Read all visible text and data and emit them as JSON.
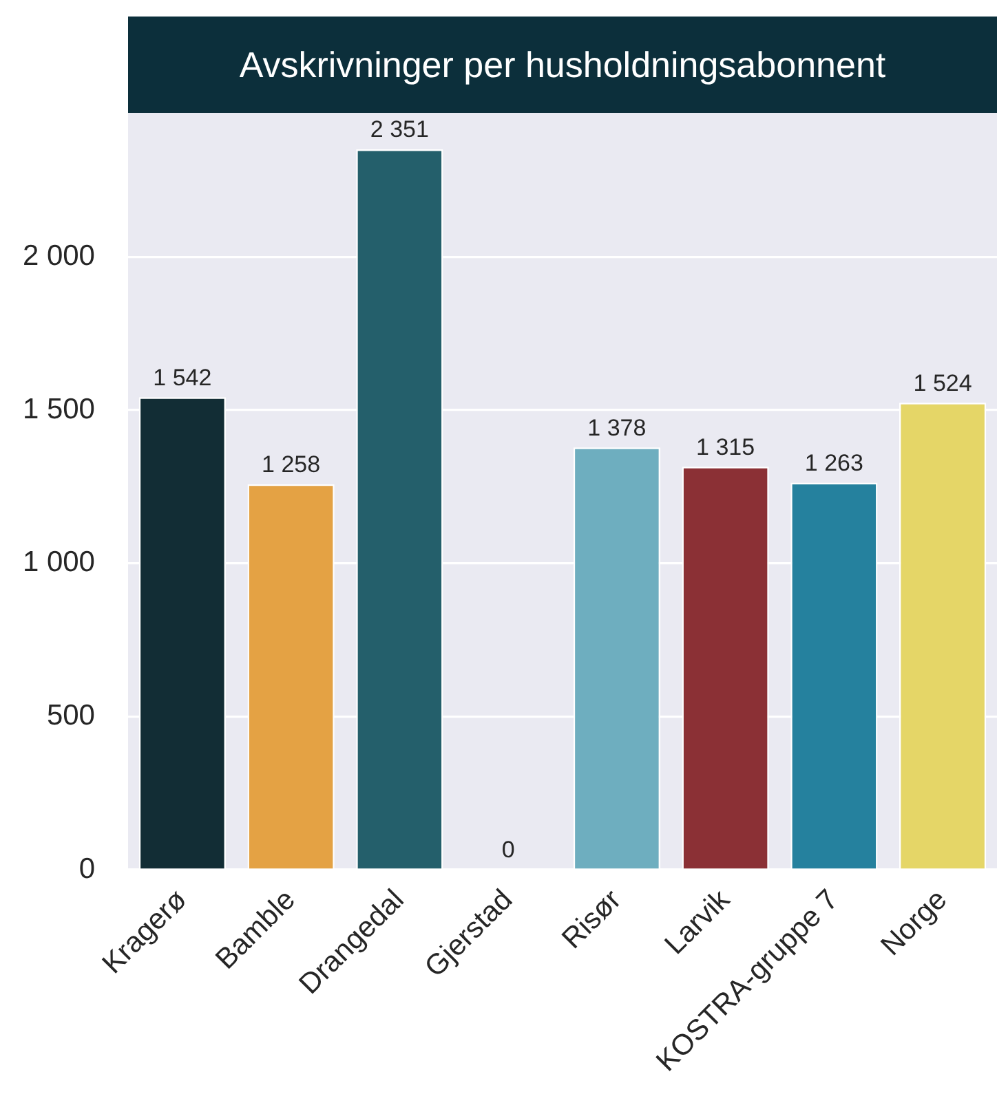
{
  "chart_data": {
    "type": "bar",
    "title": "Avskrivninger per husholdningsabonnent",
    "categories": [
      "Kragerø",
      "Bamble",
      "Drangedal",
      "Gjerstad",
      "Risør",
      "Larvik",
      "KOSTRA-gruppe 7",
      "Norge"
    ],
    "values": [
      1542,
      1258,
      2351,
      0,
      1378,
      1315,
      1263,
      1524
    ],
    "colors": [
      "#122d35",
      "#e4a244",
      "#245f6b",
      "#7a7a7a",
      "#6eaebf",
      "#8b3035",
      "#25819e",
      "#e5d667"
    ],
    "value_labels": [
      "1 542",
      "1 258",
      "2 351",
      "0",
      "1 378",
      "1 315",
      "1 263",
      "1 524"
    ],
    "ylim": [
      0,
      2470
    ],
    "yticks": [
      0,
      500,
      {
        "value": 1000,
        "label": "1 000"
      },
      {
        "value": 1500,
        "label": "1 500"
      },
      {
        "value": 2000,
        "label": "2 000"
      }
    ],
    "grid": "y"
  }
}
